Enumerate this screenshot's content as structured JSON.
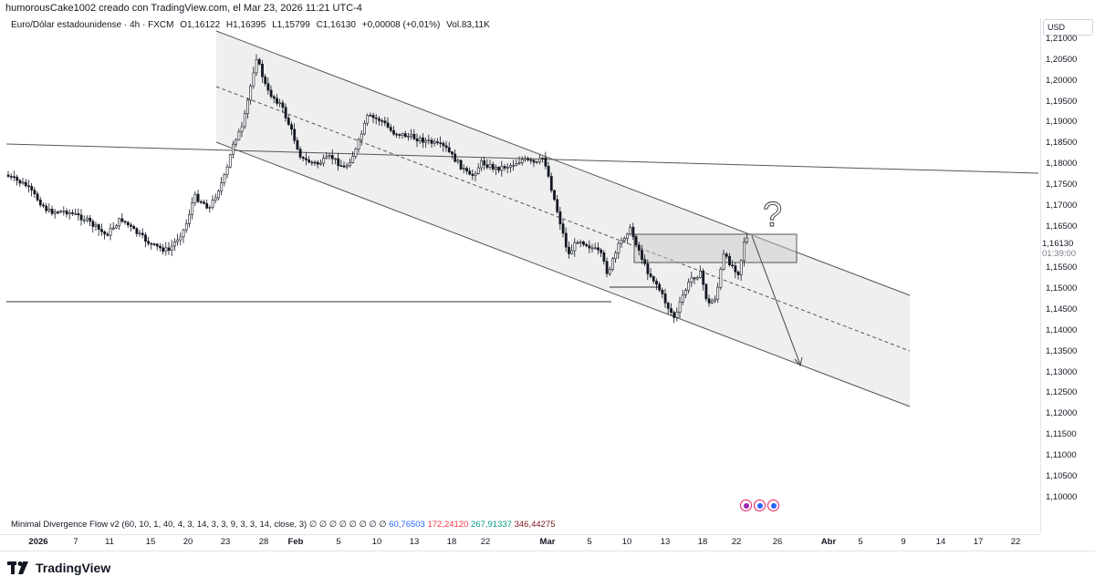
{
  "header": {
    "created_by": "humorousCake1002 creado con TradingView.com, el Mar 23, 2026 11:21 UTC-4"
  },
  "legend": {
    "symbol": "Euro/Dólar estadounidense · 4h · FXCM",
    "open": "O1,16122",
    "high": "H1,16395",
    "low": "L1,15799",
    "close": "C1,16130",
    "change": "+0,00008 (+0,01%)",
    "volume": "Vol.83,11K"
  },
  "price_axis": {
    "currency": "USD",
    "ticks": [
      "1,21000",
      "1,20500",
      "1,20000",
      "1,19500",
      "1,19000",
      "1,18500",
      "1,18000",
      "1,17500",
      "1,17000",
      "1,16500",
      "1,15500",
      "1,15000",
      "1,14500",
      "1,14000",
      "1,13500",
      "1,13000",
      "1,12500",
      "1,12000",
      "1,11500",
      "1,11000",
      "1,10500",
      "1,10000"
    ],
    "current_price": "1,16130",
    "countdown": "01:39:00"
  },
  "indicator": {
    "name": "Minimal Divergence Flow v2 (60, 10, 1, 40, 4, 3, 14, 3, 3, 9, 3, 3, 14, close, 3)",
    "placeholders": "∅ ∅ ∅ ∅ ∅ ∅ ∅ ∅",
    "v1": "60,76503",
    "v2": "172,24120",
    "v3": "267,91337",
    "v4": "346,44275"
  },
  "time_axis": {
    "ticks": [
      "2026",
      "7",
      "11",
      "15",
      "20",
      "23",
      "28",
      "Feb",
      "5",
      "10",
      "13",
      "18",
      "22",
      "Mar",
      "5",
      "10",
      "13",
      "18",
      "22",
      "26",
      "Abr",
      "5",
      "9",
      "14",
      "17",
      "22"
    ]
  },
  "annotation": {
    "question_mark": "?"
  },
  "footer": {
    "brand": "TradingView"
  },
  "colors": {
    "up": "#131722",
    "down": "#131722",
    "channel_fill": "#efefef",
    "line": "#131722"
  }
}
